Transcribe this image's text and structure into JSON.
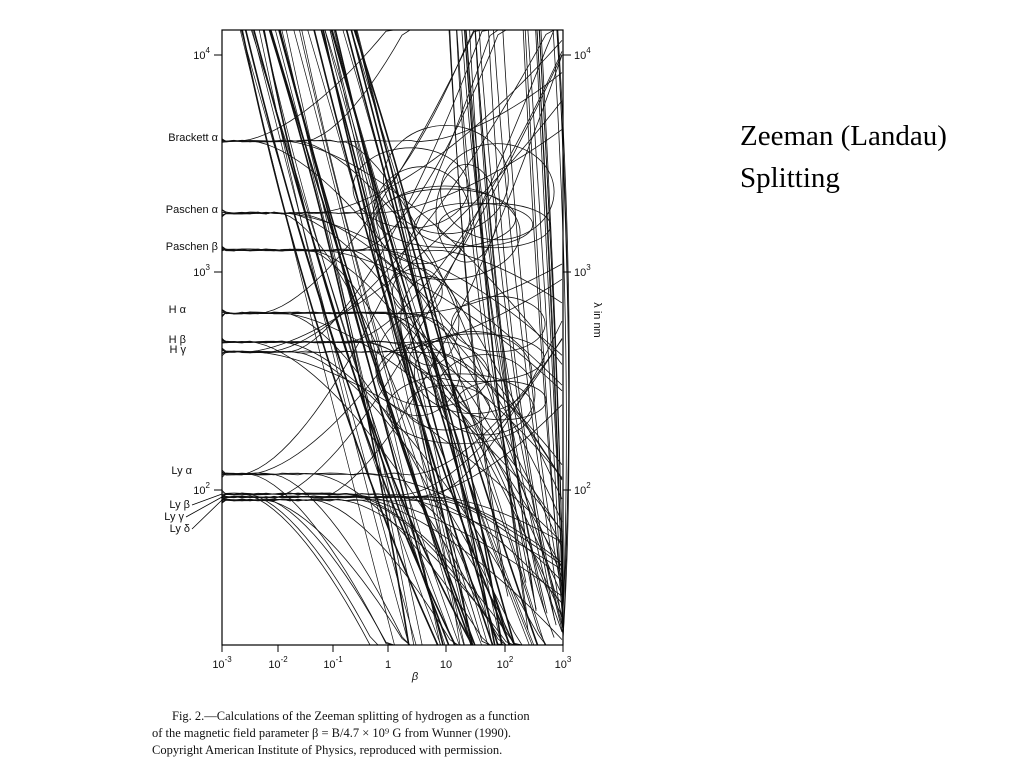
{
  "slide": {
    "title_lines": [
      "Zeeman (Landau)",
      "Splitting"
    ]
  },
  "figure": {
    "y_ticks": [
      {
        "base": "10",
        "exponent": "4"
      },
      {
        "base": "10",
        "exponent": "3"
      },
      {
        "base": "10",
        "exponent": "2"
      }
    ],
    "x_ticks": [
      {
        "base": "10",
        "exponent": "-3"
      },
      {
        "base": "10",
        "exponent": "-2"
      },
      {
        "base": "10",
        "exponent": "-1"
      },
      {
        "base": "1",
        "exponent": ""
      },
      {
        "base": "10",
        "exponent": ""
      },
      {
        "base": "10",
        "exponent": "2"
      },
      {
        "base": "10",
        "exponent": "3"
      }
    ],
    "x_axis_label": "β",
    "y_axis_label": "λ in nm",
    "line_labels": [
      "Brackett α",
      "Paschen α",
      "Paschen β",
      "H α",
      "H β",
      "H γ",
      "Ly α",
      "Ly β",
      "Ly γ",
      "Ly δ"
    ],
    "caption": [
      "Fig. 2.—Calculations of the Zeeman splitting of hydrogen as a function",
      "of the magnetic field parameter β = B/4.7 × 10⁹ G from Wunner (1990).",
      "Copyright American Institute of Physics, reproduced with permission."
    ]
  }
}
